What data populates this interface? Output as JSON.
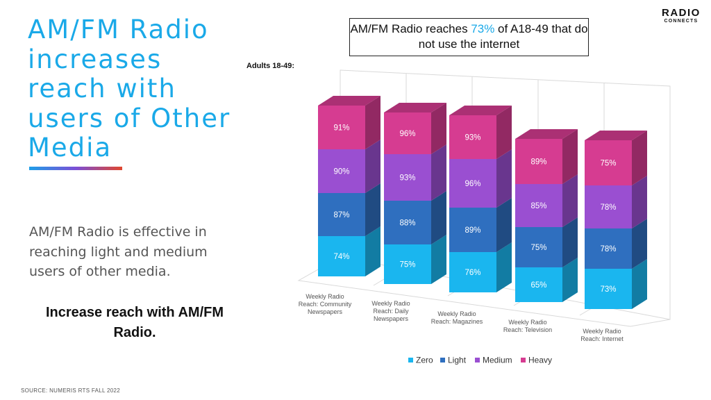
{
  "headline": "AM/FM Radio increases reach with users of Other Media",
  "body_text": "AM/FM Radio is effective in reaching light and medium users of other media.",
  "cta": "Increase reach with AM/FM Radio.",
  "source": "SOURCE: NUMERIS RTS FALL 2022",
  "callout": {
    "prefix": "AM/FM Radio reaches ",
    "highlight": "73%",
    "suffix": " of  A18-49 that do not use the internet"
  },
  "subtitle": "Adults 18-49:",
  "logo": {
    "line1": "RADIO",
    "line2": "CONNECTS"
  },
  "colors": {
    "zero": "#1ab6ef",
    "light": "#2f6fbf",
    "medium": "#9a4fd1",
    "heavy": "#d63c91",
    "accent_text": "#1aa9e8"
  },
  "chart_data": {
    "type": "bar",
    "stacked": true,
    "three_d": true,
    "categories": [
      [
        "Weekly Radio",
        "Reach: Community",
        "Newspapers"
      ],
      [
        "Weekly Radio",
        "Reach: Daily",
        "Newspapers"
      ],
      [
        "Weekly Radio",
        "Reach: Magazines"
      ],
      [
        "Weekly Radio",
        "Reach: Television"
      ],
      [
        "Weekly Radio",
        "Reach: Internet"
      ]
    ],
    "series": [
      {
        "name": "Zero",
        "values": [
          74,
          75,
          76,
          65,
          73
        ]
      },
      {
        "name": "Light",
        "values": [
          87,
          88,
          89,
          75,
          78
        ]
      },
      {
        "name": "Medium",
        "values": [
          90,
          93,
          96,
          85,
          78
        ]
      },
      {
        "name": "Heavy",
        "values": [
          91,
          96,
          93,
          89,
          75
        ]
      }
    ],
    "value_suffix": "%",
    "legend_position": "bottom",
    "grid": true
  }
}
